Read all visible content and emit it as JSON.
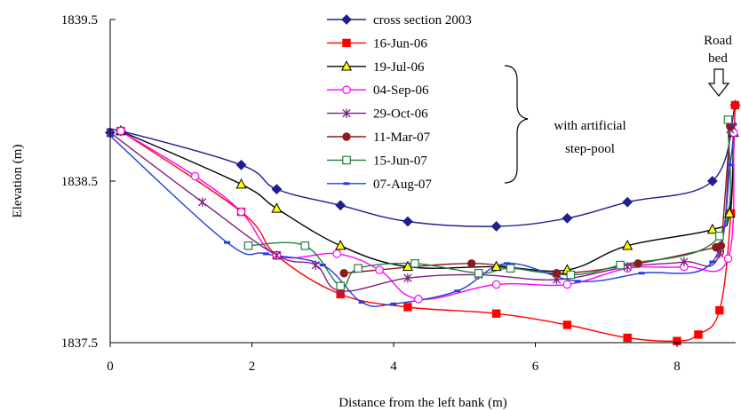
{
  "chart_data": {
    "type": "line",
    "xlabel": "Distance from the left bank (m)",
    "ylabel": "Elevation (m)",
    "xlim": [
      0,
      8.8
    ],
    "ylim": [
      1837.5,
      1839.5
    ],
    "xticks": [
      "0",
      "2",
      "4",
      "6",
      "8"
    ],
    "yticks": [
      "1837.5",
      "1838.5",
      "1839.5"
    ],
    "grid": false,
    "legend_position": "top-right",
    "annotations": {
      "bracket_line1": "with artificial",
      "bracket_line2": "step-pool",
      "road_line1": "Road",
      "road_line2": "bed"
    },
    "series": [
      {
        "name": "cross section 2003",
        "color": "#1f1f8f",
        "marker": "diamond",
        "x": [
          0,
          0.15,
          1.85,
          2.35,
          3.25,
          4.2,
          5.45,
          6.45,
          7.3,
          8.5,
          8.82
        ],
        "y": [
          1838.8,
          1838.81,
          1838.6,
          1838.45,
          1838.35,
          1838.25,
          1838.22,
          1838.27,
          1838.37,
          1838.5,
          1838.97
        ]
      },
      {
        "name": "16-Jun-06",
        "color": "#ff0000",
        "marker": "square",
        "x": [
          0.15,
          1.85,
          2.35,
          3.25,
          4.2,
          5.45,
          6.45,
          7.3,
          8.0,
          8.3,
          8.6,
          8.76,
          8.82
        ],
        "y": [
          1838.81,
          1838.31,
          1838.04,
          1837.8,
          1837.72,
          1837.68,
          1837.61,
          1837.53,
          1837.51,
          1837.55,
          1837.7,
          1838.3,
          1838.97
        ]
      },
      {
        "name": "19-Jul-06",
        "color": "#000000",
        "marker": "triangle",
        "x": [
          0.15,
          1.85,
          2.35,
          3.25,
          4.2,
          5.45,
          6.45,
          7.3,
          8.5,
          8.74,
          8.8
        ],
        "y": [
          1838.81,
          1838.48,
          1838.33,
          1838.1,
          1837.97,
          1837.97,
          1837.95,
          1838.1,
          1838.2,
          1838.3,
          1838.8
        ]
      },
      {
        "name": "04-Sep-06",
        "color": "#ff00ff",
        "marker": "circle",
        "x": [
          0.15,
          1.2,
          1.85,
          2.35,
          3.2,
          3.8,
          4.35,
          5.45,
          6.45,
          7.3,
          8.1,
          8.72,
          8.8
        ],
        "y": [
          1838.81,
          1838.53,
          1838.31,
          1838.04,
          1838.05,
          1837.95,
          1837.77,
          1837.86,
          1837.86,
          1837.96,
          1837.97,
          1838.02,
          1838.8
        ]
      },
      {
        "name": "29-Oct-06",
        "color": "#7f207f",
        "marker": "asterisk",
        "x": [
          0,
          1.3,
          2.35,
          2.9,
          3.25,
          4.2,
          5.2,
          6.3,
          7.3,
          8.1,
          8.6,
          8.75,
          8.78
        ],
        "y": [
          1838.8,
          1838.37,
          1838.04,
          1837.98,
          1837.82,
          1837.9,
          1837.92,
          1837.89,
          1837.97,
          1838.0,
          1838.05,
          1838.82,
          1838.84
        ]
      },
      {
        "name": "11-Mar-07",
        "color": "#8b1a1a",
        "marker": "circle",
        "x": [
          3.3,
          5.1,
          6.3,
          7.45,
          8.55,
          8.62,
          8.75
        ],
        "y": [
          1837.93,
          1837.99,
          1837.93,
          1837.99,
          1838.09,
          1838.1,
          1838.84
        ]
      },
      {
        "name": "15-Jun-07",
        "color": "#208040",
        "marker": "square-open",
        "x": [
          1.95,
          2.75,
          3.25,
          3.5,
          4.3,
          5.2,
          5.65,
          6.5,
          7.2,
          8.6,
          8.72
        ],
        "y": [
          1838.1,
          1838.1,
          1837.85,
          1837.96,
          1837.99,
          1837.93,
          1837.96,
          1837.92,
          1837.98,
          1838.16,
          1838.88
        ]
      },
      {
        "name": "07-Aug-07",
        "color": "#1f3fdf",
        "marker": "dash",
        "x": [
          0,
          1.65,
          2.2,
          3.0,
          3.55,
          4.0,
          4.9,
          5.6,
          6.6,
          7.5,
          8.5,
          8.75,
          8.8
        ],
        "y": [
          1838.78,
          1838.12,
          1838.05,
          1837.98,
          1837.75,
          1837.74,
          1837.82,
          1837.99,
          1837.88,
          1837.93,
          1838.0,
          1838.6,
          1838.85
        ]
      }
    ]
  }
}
